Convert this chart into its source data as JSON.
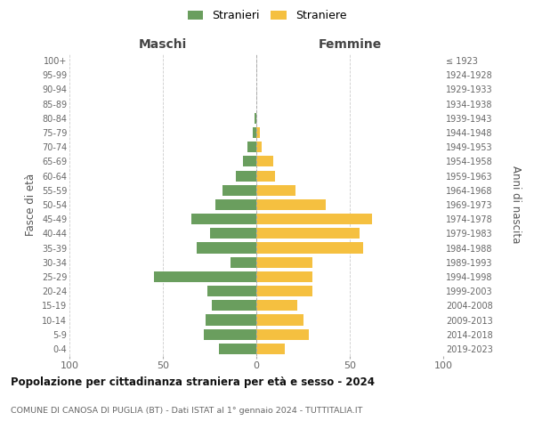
{
  "age_groups": [
    "0-4",
    "5-9",
    "10-14",
    "15-19",
    "20-24",
    "25-29",
    "30-34",
    "35-39",
    "40-44",
    "45-49",
    "50-54",
    "55-59",
    "60-64",
    "65-69",
    "70-74",
    "75-79",
    "80-84",
    "85-89",
    "90-94",
    "95-99",
    "100+"
  ],
  "birth_years": [
    "2019-2023",
    "2014-2018",
    "2009-2013",
    "2004-2008",
    "1999-2003",
    "1994-1998",
    "1989-1993",
    "1984-1988",
    "1979-1983",
    "1974-1978",
    "1969-1973",
    "1964-1968",
    "1959-1963",
    "1954-1958",
    "1949-1953",
    "1944-1948",
    "1939-1943",
    "1934-1938",
    "1929-1933",
    "1924-1928",
    "≤ 1923"
  ],
  "males": [
    20,
    28,
    27,
    24,
    26,
    55,
    14,
    32,
    25,
    35,
    22,
    18,
    11,
    7,
    5,
    2,
    1,
    0,
    0,
    0,
    0
  ],
  "females": [
    15,
    28,
    25,
    22,
    30,
    30,
    30,
    57,
    55,
    62,
    37,
    21,
    10,
    9,
    3,
    2,
    0,
    0,
    0,
    0,
    0
  ],
  "male_color": "#6a9e5e",
  "female_color": "#f5c040",
  "bar_height": 0.75,
  "xlim": 100,
  "title": "Popolazione per cittadinanza straniera per età e sesso - 2024",
  "subtitle": "COMUNE DI CANOSA DI PUGLIA (BT) - Dati ISTAT al 1° gennaio 2024 - TUTTITALIA.IT",
  "xlabel_left": "Maschi",
  "xlabel_right": "Femmine",
  "ylabel_left": "Fasce di età",
  "ylabel_right": "Anni di nascita",
  "legend_male": "Stranieri",
  "legend_female": "Straniere",
  "background_color": "#ffffff",
  "grid_color": "#cccccc",
  "fig_width": 6.0,
  "fig_height": 5.0
}
